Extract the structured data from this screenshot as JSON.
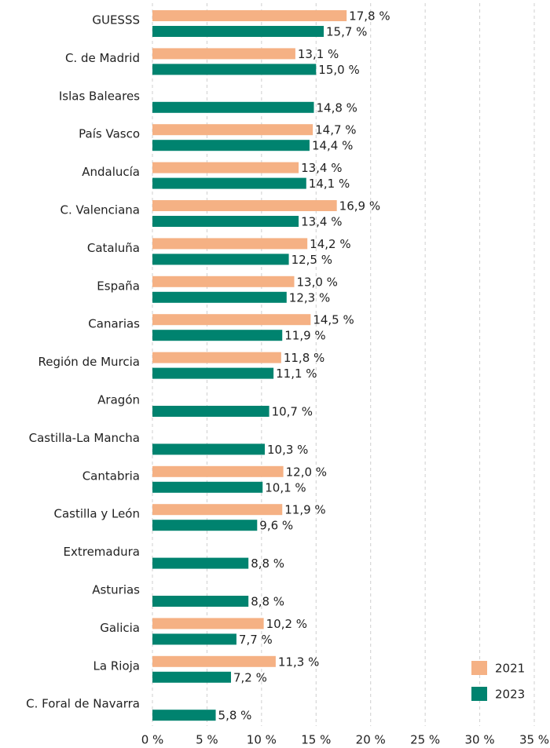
{
  "chart_data": {
    "type": "bar",
    "orientation": "horizontal",
    "categories": [
      "GUESSS",
      "C. de Madrid",
      "Islas Baleares",
      "País Vasco",
      "Andalucía",
      "C. Valenciana",
      "Cataluña",
      "España",
      "Canarias",
      "Región de Murcia",
      "Aragón",
      "Castilla-La Mancha",
      "Cantabria",
      "Castilla y León",
      "Extremadura",
      "Asturias",
      "Galicia",
      "La Rioja",
      "C. Foral de Navarra"
    ],
    "series": [
      {
        "name": "2021",
        "color": "#f5b184",
        "values": [
          17.8,
          13.1,
          null,
          14.7,
          13.4,
          16.9,
          14.2,
          13.0,
          14.5,
          11.8,
          null,
          null,
          12.0,
          11.9,
          null,
          null,
          10.2,
          11.3,
          null
        ],
        "value_labels": [
          "17,8 %",
          "13,1 %",
          null,
          "14,7 %",
          "13,4 %",
          "16,9 %",
          "14,2 %",
          "13,0 %",
          "14,5 %",
          "11,8 %",
          null,
          null,
          "12,0 %",
          "11,9 %",
          null,
          null,
          "10,2 %",
          "11,3 %",
          null
        ]
      },
      {
        "name": "2023",
        "color": "#00836f",
        "values": [
          15.7,
          15.0,
          14.8,
          14.4,
          14.1,
          13.4,
          12.5,
          12.3,
          11.9,
          11.1,
          10.7,
          10.3,
          10.1,
          9.6,
          8.8,
          8.8,
          7.7,
          7.2,
          5.8
        ],
        "value_labels": [
          "15,7 %",
          "15,0 %",
          "14,8 %",
          "14,4 %",
          "14,1 %",
          "13,4 %",
          "12,5 %",
          "12,3 %",
          "11,9 %",
          "11,1 %",
          "10,7 %",
          "10,3 %",
          "10,1 %",
          "9,6 %",
          "8,8 %",
          "8,8 %",
          "7,7 %",
          "7,2 %",
          "5,8 %"
        ]
      }
    ],
    "xlim": [
      0,
      35
    ],
    "xticks": [
      {
        "value": 0,
        "label": "0 %"
      },
      {
        "value": 5,
        "label": "5 %"
      },
      {
        "value": 10,
        "label": "10 %"
      },
      {
        "value": 15,
        "label": "15 %"
      },
      {
        "value": 20,
        "label": "20 %"
      },
      {
        "value": 25,
        "label": "25 %"
      },
      {
        "value": 30,
        "label": "30 %"
      },
      {
        "value": 35,
        "label": "35 %"
      }
    ],
    "grid": true,
    "legend": "bottom-right"
  }
}
